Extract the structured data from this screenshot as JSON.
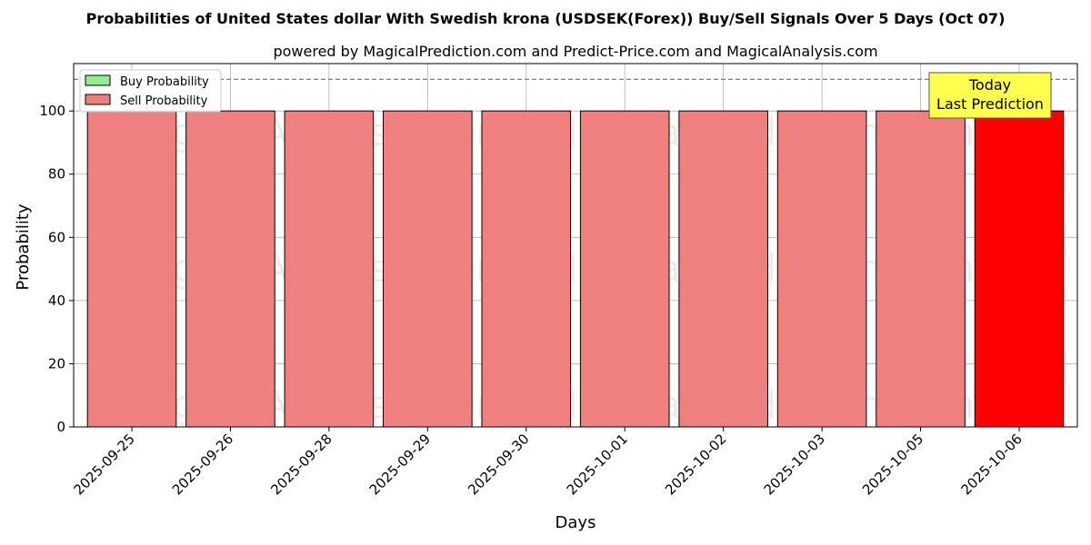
{
  "chart_data": {
    "type": "bar",
    "title": "Probabilities of United States dollar With Swedish krona (USDSEK(Forex)) Buy/Sell Signals Over 5 Days (Oct 07)",
    "subtitle": "powered by MagicalPrediction.com and Predict-Price.com and MagicalAnalysis.com",
    "xlabel": "Days",
    "ylabel": "Probability",
    "categories": [
      "2025-09-25",
      "2025-09-26",
      "2025-09-28",
      "2025-09-29",
      "2025-09-30",
      "2025-10-01",
      "2025-10-02",
      "2025-10-03",
      "2025-10-05",
      "2025-10-06"
    ],
    "series": [
      {
        "name": "Buy Probability",
        "color": "#90ee90",
        "values": [
          0,
          0,
          0,
          0,
          0,
          0,
          0,
          0,
          0,
          0
        ]
      },
      {
        "name": "Sell Probability",
        "color": "#f08080",
        "values": [
          100,
          100,
          100,
          100,
          100,
          100,
          100,
          100,
          100,
          100
        ]
      }
    ],
    "highlight": {
      "index": 9,
      "color": "#ff0000"
    },
    "ylim": [
      0,
      115
    ],
    "yticks": [
      0,
      20,
      40,
      60,
      80,
      100
    ],
    "reference_line": 110,
    "grid": true,
    "legend_position": "top-left",
    "annotation": {
      "lines": [
        "Today",
        "Last Prediction"
      ],
      "background": "#ffff4d"
    },
    "watermarks": [
      "MagicalAnalysis.com",
      "MagicalPrediction.com"
    ]
  }
}
